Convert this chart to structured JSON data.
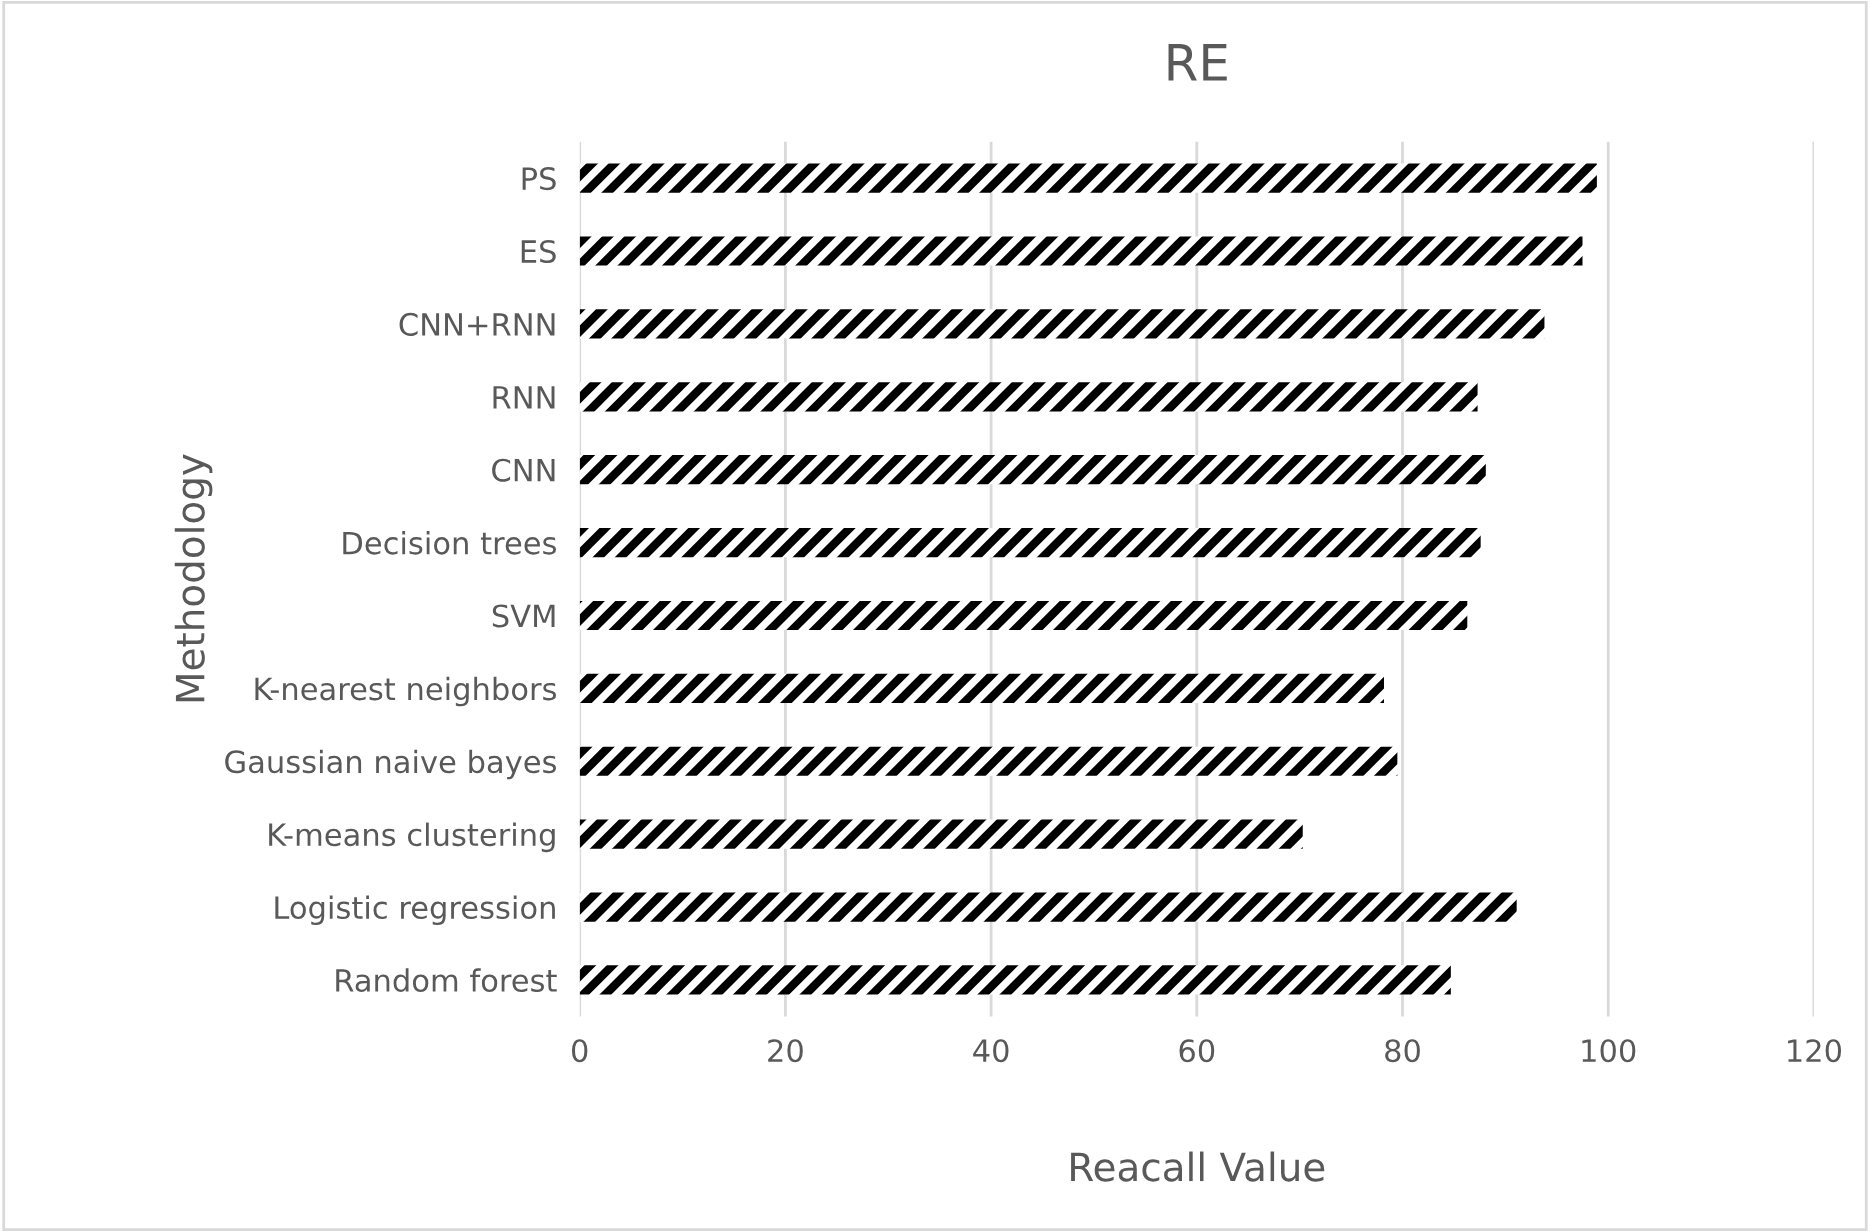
{
  "chart_data": {
    "type": "bar",
    "orientation": "horizontal",
    "title": "RE",
    "xlabel": "Reacall Value",
    "ylabel": "Methodology",
    "categories": [
      "PS",
      "ES",
      "CNN+RNN",
      "RNN",
      "CNN",
      "Decision trees",
      "SVM",
      "K-nearest neighbors",
      "Gaussian naive bayes",
      "K-means clustering",
      "Logistic regression",
      "Random forest"
    ],
    "values": [
      98.9,
      97.5,
      93.8,
      87.3,
      88.1,
      87.6,
      86.3,
      78.2,
      79.5,
      70.3,
      91.1,
      84.7
    ],
    "xlim": [
      0,
      120
    ],
    "xticks": [
      0,
      20,
      40,
      60,
      80,
      100,
      120
    ],
    "grid": "x"
  }
}
